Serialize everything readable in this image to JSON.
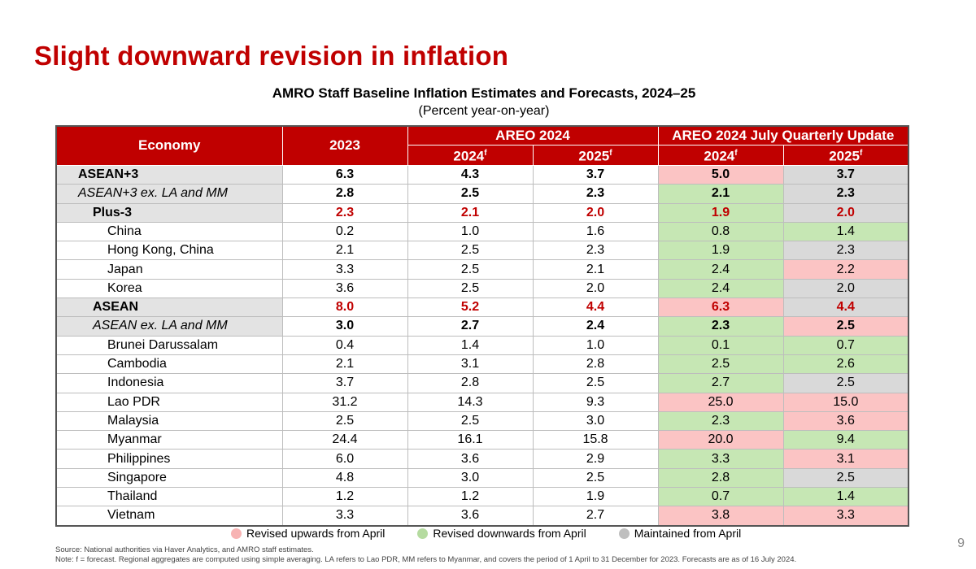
{
  "slide_title": "Slight downward revision in inflation",
  "table_title": "AMRO Staff Baseline Inflation Estimates and Forecasts, 2024–25",
  "table_subtitle": "(Percent year-on-year)",
  "headers": {
    "economy": "Economy",
    "y2023": "2023",
    "areo": "AREO 2024",
    "update": "AREO 2024 July Quarterly Update",
    "y2024": "2024",
    "y2025": "2025",
    "forecast_mark": "f"
  },
  "colors": {
    "header_red": "#c00000",
    "revised_up": "#fbc4c4",
    "revised_down": "#c6e7b4",
    "maintained": "#d9d9d9"
  },
  "rows": [
    {
      "economy": "ASEAN+3",
      "v2023": "6.3",
      "a2024": "4.3",
      "a2025": "3.7",
      "u2024": "5.0",
      "u2025": "3.7"
    },
    {
      "economy": "ASEAN+3 ex. LA and MM",
      "v2023": "2.8",
      "a2024": "2.5",
      "a2025": "2.3",
      "u2024": "2.1",
      "u2025": "2.3"
    },
    {
      "economy": "Plus-3",
      "v2023": "2.3",
      "a2024": "2.1",
      "a2025": "2.0",
      "u2024": "1.9",
      "u2025": "2.0"
    },
    {
      "economy": "China",
      "v2023": "0.2",
      "a2024": "1.0",
      "a2025": "1.6",
      "u2024": "0.8",
      "u2025": "1.4"
    },
    {
      "economy": "Hong Kong, China",
      "v2023": "2.1",
      "a2024": "2.5",
      "a2025": "2.3",
      "u2024": "1.9",
      "u2025": "2.3"
    },
    {
      "economy": "Japan",
      "v2023": "3.3",
      "a2024": "2.5",
      "a2025": "2.1",
      "u2024": "2.4",
      "u2025": "2.2"
    },
    {
      "economy": "Korea",
      "v2023": "3.6",
      "a2024": "2.5",
      "a2025": "2.0",
      "u2024": "2.4",
      "u2025": "2.0"
    },
    {
      "economy": "ASEAN",
      "v2023": "8.0",
      "a2024": "5.2",
      "a2025": "4.4",
      "u2024": "6.3",
      "u2025": "4.4"
    },
    {
      "economy": "ASEAN ex. LA and MM",
      "v2023": "3.0",
      "a2024": "2.7",
      "a2025": "2.4",
      "u2024": "2.3",
      "u2025": "2.5"
    },
    {
      "economy": "Brunei Darussalam",
      "v2023": "0.4",
      "a2024": "1.4",
      "a2025": "1.0",
      "u2024": "0.1",
      "u2025": "0.7"
    },
    {
      "economy": "Cambodia",
      "v2023": "2.1",
      "a2024": "3.1",
      "a2025": "2.8",
      "u2024": "2.5",
      "u2025": "2.6"
    },
    {
      "economy": "Indonesia",
      "v2023": "3.7",
      "a2024": "2.8",
      "a2025": "2.5",
      "u2024": "2.7",
      "u2025": "2.5"
    },
    {
      "economy": "Lao PDR",
      "v2023": "31.2",
      "a2024": "14.3",
      "a2025": "9.3",
      "u2024": "25.0",
      "u2025": "15.0"
    },
    {
      "economy": "Malaysia",
      "v2023": "2.5",
      "a2024": "2.5",
      "a2025": "3.0",
      "u2024": "2.3",
      "u2025": "3.6"
    },
    {
      "economy": "Myanmar",
      "v2023": "24.4",
      "a2024": "16.1",
      "a2025": "15.8",
      "u2024": "20.0",
      "u2025": "9.4"
    },
    {
      "economy": "Philippines",
      "v2023": "6.0",
      "a2024": "3.6",
      "a2025": "2.9",
      "u2024": "3.3",
      "u2025": "3.1"
    },
    {
      "economy": "Singapore",
      "v2023": "4.8",
      "a2024": "3.0",
      "a2025": "2.5",
      "u2024": "2.8",
      "u2025": "2.5"
    },
    {
      "economy": "Thailand",
      "v2023": "1.2",
      "a2024": "1.2",
      "a2025": "1.9",
      "u2024": "0.7",
      "u2025": "1.4"
    },
    {
      "economy": "Vietnam",
      "v2023": "3.3",
      "a2024": "3.6",
      "a2025": "2.7",
      "u2024": "3.8",
      "u2025": "3.3"
    }
  ],
  "legend": {
    "up": "Revised upwards from April",
    "down": "Revised downwards from April",
    "same": "Maintained  from April"
  },
  "source_line": "Source: National authorities via Haver Analytics, and AMRO staff estimates.",
  "note_line": "Note:  f = forecast. Regional aggregates are computed using simple averaging. LA refers to Lao PDR,  MM  refers to Myanmar, and covers the period of 1 April to 31 December for 2023. Forecasts are as of 16 July 2024.",
  "page_number": "9"
}
